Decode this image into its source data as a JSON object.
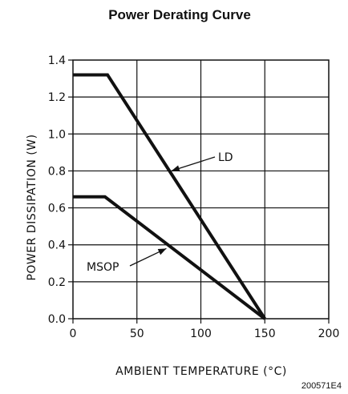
{
  "chart_data": {
    "type": "line",
    "title": "Power Derating Curve",
    "xlabel": "AMBIENT TEMPERATURE (°C)",
    "ylabel": "POWER DISSIPATION (W)",
    "xlim": [
      0,
      200
    ],
    "ylim": [
      0.0,
      1.4
    ],
    "xticks": [
      0,
      50,
      100,
      150,
      200
    ],
    "xtick_labels": [
      "0",
      "50",
      "100",
      "150",
      "200"
    ],
    "yticks": [
      0.0,
      0.2,
      0.4,
      0.6,
      0.8,
      1.0,
      1.2,
      1.4
    ],
    "ytick_labels": [
      "0.0",
      "0.2",
      "0.4",
      "0.6",
      "0.8",
      "1.0",
      "1.2",
      "1.4"
    ],
    "grid": true,
    "series": [
      {
        "name": "LD",
        "x": [
          0,
          27,
          150
        ],
        "y": [
          1.32,
          1.32,
          0.0
        ]
      },
      {
        "name": "MSOP",
        "x": [
          0,
          25,
          150
        ],
        "y": [
          0.66,
          0.66,
          0.0
        ]
      }
    ],
    "annotations": [
      {
        "text": "LD",
        "series": "LD",
        "arrow_to": [
          77,
          0.8
        ]
      },
      {
        "text": "MSOP",
        "series": "MSOP",
        "arrow_to": [
          73,
          0.38
        ]
      }
    ],
    "figure_id": "200571E4"
  },
  "colors": {
    "line": "#111111",
    "grid": "#111111",
    "background": "#ffffff"
  }
}
